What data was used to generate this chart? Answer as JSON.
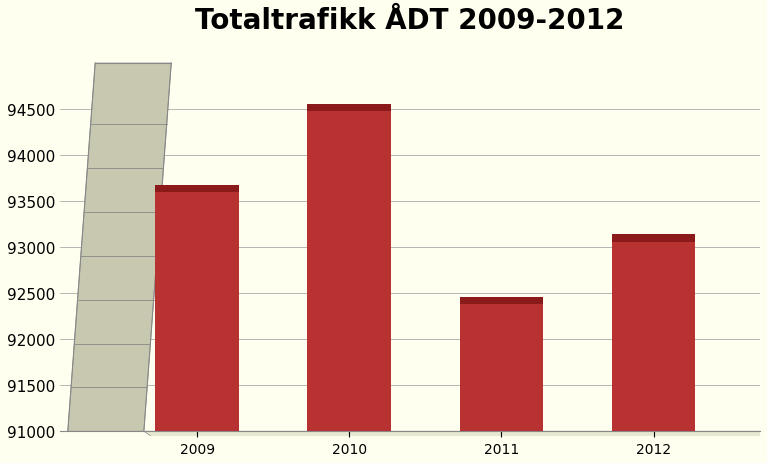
{
  "title": "Totaltrafikk ÅDT 2009-2012",
  "categories": [
    "2009",
    "2010",
    "2011",
    "2012"
  ],
  "values": [
    93600,
    94480,
    92380,
    93060
  ],
  "bar_color": "#B83232",
  "bar_top_color": "#8B1A1A",
  "background_color": "#FFFFF0",
  "plot_bg_color": "#FFFFF0",
  "wall_color": "#AAAAAA",
  "wall_color_light": "#C8C8B0",
  "wall_color_dark": "#9A9A88",
  "floor_color": "#CCCCAA",
  "ylim_min": 91000,
  "ylim_max": 95200,
  "yticks": [
    91000,
    91500,
    92000,
    92500,
    93000,
    93500,
    94000,
    94500
  ],
  "title_fontsize": 20,
  "tick_fontsize": 11,
  "grid_color": "#AAAAAA"
}
